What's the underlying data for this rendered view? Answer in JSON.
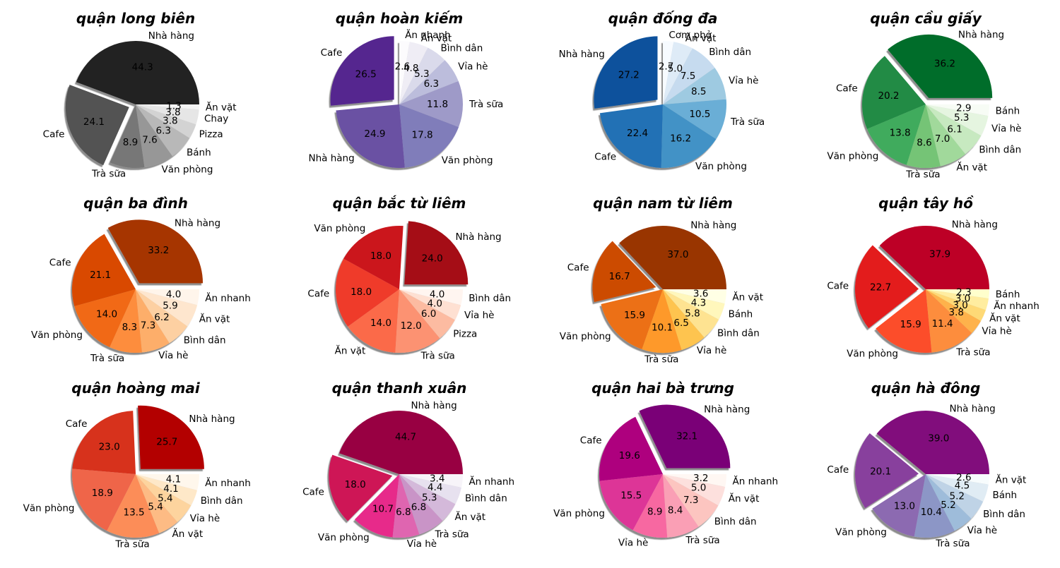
{
  "chart_data": [
    {
      "type": "pie",
      "title": "quận long biên",
      "palette": "greys",
      "startangle": 0,
      "slices": [
        {
          "label": "Nhà hàng",
          "value": 44.3,
          "explode": false
        },
        {
          "label": "Cafe",
          "value": 24.1,
          "explode": true
        },
        {
          "label": "Trà sữa",
          "value": 8.9,
          "explode": false
        },
        {
          "label": "Văn phòng",
          "value": 7.6,
          "explode": false
        },
        {
          "label": "Bánh",
          "value": 6.3,
          "explode": false
        },
        {
          "label": "Pizza",
          "value": 3.8,
          "explode": false
        },
        {
          "label": "Chay",
          "value": 3.8,
          "explode": false
        },
        {
          "label": "Ăn vặt",
          "value": 1.3,
          "explode": false
        }
      ]
    },
    {
      "type": "pie",
      "title": "quận hoàn kiếm",
      "palette": "purples",
      "startangle": 90,
      "slices": [
        {
          "label": "Cafe",
          "value": 26.5,
          "explode": true
        },
        {
          "label": "Nhà hàng",
          "value": 24.9,
          "explode": false
        },
        {
          "label": "Văn phòng",
          "value": 17.8,
          "explode": false
        },
        {
          "label": "Trà sữa",
          "value": 11.8,
          "explode": false
        },
        {
          "label": "Vỉa hè",
          "value": 6.3,
          "explode": false
        },
        {
          "label": "Bình dân",
          "value": 5.3,
          "explode": false
        },
        {
          "label": "Ăn vặt",
          "value": 4.8,
          "explode": false
        },
        {
          "label": "Ăn nhanh",
          "value": 2.6,
          "explode": false
        }
      ]
    },
    {
      "type": "pie",
      "title": "quận đống đa",
      "palette": "blues",
      "startangle": 90,
      "slices": [
        {
          "label": "Nhà hàng",
          "value": 27.2,
          "explode": true
        },
        {
          "label": "Cafe",
          "value": 22.4,
          "explode": false
        },
        {
          "label": "Văn phòng",
          "value": 16.2,
          "explode": false
        },
        {
          "label": "Trà sữa",
          "value": 10.5,
          "explode": false
        },
        {
          "label": "Vỉa hè",
          "value": 8.5,
          "explode": false
        },
        {
          "label": "Bình dân",
          "value": 7.5,
          "explode": false
        },
        {
          "label": "Ăn vặt",
          "value": 5.0,
          "explode": false
        },
        {
          "label": "Cơm phở",
          "value": 2.7,
          "explode": false
        }
      ]
    },
    {
      "type": "pie",
      "title": "quận cầu giấy",
      "palette": "greens",
      "startangle": 0,
      "slices": [
        {
          "label": "Nhà hàng",
          "value": 36.2,
          "explode": true
        },
        {
          "label": "Cafe",
          "value": 20.2,
          "explode": false
        },
        {
          "label": "Văn phòng",
          "value": 13.8,
          "explode": false
        },
        {
          "label": "Trà sữa",
          "value": 8.6,
          "explode": false
        },
        {
          "label": "Ăn vặt",
          "value": 7.0,
          "explode": false
        },
        {
          "label": "Bình dân",
          "value": 6.1,
          "explode": false
        },
        {
          "label": "Vỉa hè",
          "value": 5.3,
          "explode": false
        },
        {
          "label": "Bánh",
          "value": 2.9,
          "explode": false
        }
      ]
    },
    {
      "type": "pie",
      "title": "quận ba đình",
      "palette": "oranges",
      "startangle": 0,
      "slices": [
        {
          "label": "Nhà hàng",
          "value": 33.2,
          "explode": true
        },
        {
          "label": "Cafe",
          "value": 21.1,
          "explode": false
        },
        {
          "label": "Văn phòng",
          "value": 14.0,
          "explode": false
        },
        {
          "label": "Trà sữa",
          "value": 8.3,
          "explode": false
        },
        {
          "label": "Vỉa hè",
          "value": 7.3,
          "explode": false
        },
        {
          "label": "Bình dân",
          "value": 6.2,
          "explode": false
        },
        {
          "label": "Ăn vặt",
          "value": 5.9,
          "explode": false
        },
        {
          "label": "Ăn nhanh",
          "value": 4.0,
          "explode": false
        }
      ]
    },
    {
      "type": "pie",
      "title": "quận bắc từ liêm",
      "palette": "reds",
      "startangle": 0,
      "slices": [
        {
          "label": "Nhà hàng",
          "value": 24.0,
          "explode": true
        },
        {
          "label": "Văn phòng",
          "value": 18.0,
          "explode": false
        },
        {
          "label": "Cafe",
          "value": 18.0,
          "explode": false
        },
        {
          "label": "Ăn vặt",
          "value": 14.0,
          "explode": false
        },
        {
          "label": "Trà sữa",
          "value": 12.0,
          "explode": false
        },
        {
          "label": "Pizza",
          "value": 6.0,
          "explode": false
        },
        {
          "label": "Vỉa hè",
          "value": 4.0,
          "explode": false
        },
        {
          "label": "Bình dân",
          "value": 4.0,
          "explode": false
        }
      ]
    },
    {
      "type": "pie",
      "title": "quận nam từ liêm",
      "palette": "ylorbr",
      "startangle": 0,
      "slices": [
        {
          "label": "Nhà hàng",
          "value": 37.0,
          "explode": false
        },
        {
          "label": "Cafe",
          "value": 16.7,
          "explode": true
        },
        {
          "label": "Văn phòng",
          "value": 15.9,
          "explode": false
        },
        {
          "label": "Trà sữa",
          "value": 10.1,
          "explode": false
        },
        {
          "label": "Vỉa hè",
          "value": 6.5,
          "explode": false
        },
        {
          "label": "Bình dân",
          "value": 5.8,
          "explode": false
        },
        {
          "label": "Bánh",
          "value": 4.3,
          "explode": false
        },
        {
          "label": "Ăn vặt",
          "value": 3.6,
          "explode": false
        }
      ]
    },
    {
      "type": "pie",
      "title": "quận tây hồ",
      "palette": "ylorrd",
      "startangle": 0,
      "slices": [
        {
          "label": "Nhà hàng",
          "value": 37.9,
          "explode": false
        },
        {
          "label": "Cafe",
          "value": 22.7,
          "explode": true
        },
        {
          "label": "Văn phòng",
          "value": 15.9,
          "explode": false
        },
        {
          "label": "Trà sữa",
          "value": 11.4,
          "explode": false
        },
        {
          "label": "Vỉa hè",
          "value": 3.8,
          "explode": false
        },
        {
          "label": "Ăn vặt",
          "value": 3.0,
          "explode": false
        },
        {
          "label": "Ăn nhanh",
          "value": 3.0,
          "explode": false
        },
        {
          "label": "Bánh",
          "value": 2.3,
          "explode": false
        }
      ]
    },
    {
      "type": "pie",
      "title": "quận hoàng mai",
      "palette": "orrd",
      "startangle": 0,
      "slices": [
        {
          "label": "Nhà hàng",
          "value": 25.7,
          "explode": true
        },
        {
          "label": "Cafe",
          "value": 23.0,
          "explode": false
        },
        {
          "label": "Văn phòng",
          "value": 18.9,
          "explode": false
        },
        {
          "label": "Trà sữa",
          "value": 13.5,
          "explode": false
        },
        {
          "label": "Ăn vặt",
          "value": 5.4,
          "explode": false
        },
        {
          "label": "Vỉa hè",
          "value": 5.4,
          "explode": false
        },
        {
          "label": "Bình dân",
          "value": 4.1,
          "explode": false
        },
        {
          "label": "Ăn nhanh",
          "value": 4.1,
          "explode": false
        }
      ]
    },
    {
      "type": "pie",
      "title": "quận thanh xuân",
      "palette": "purd",
      "startangle": 0,
      "slices": [
        {
          "label": "Nhà hàng",
          "value": 44.7,
          "explode": false
        },
        {
          "label": "Cafe",
          "value": 18.0,
          "explode": true
        },
        {
          "label": "Văn phòng",
          "value": 10.7,
          "explode": false
        },
        {
          "label": "Vỉa hè",
          "value": 6.8,
          "explode": false
        },
        {
          "label": "Trà sữa",
          "value": 6.8,
          "explode": false
        },
        {
          "label": "Ăn vặt",
          "value": 5.3,
          "explode": false
        },
        {
          "label": "Bình dân",
          "value": 4.4,
          "explode": false
        },
        {
          "label": "Ăn nhanh",
          "value": 3.4,
          "explode": false
        }
      ]
    },
    {
      "type": "pie",
      "title": "quận hai bà trưng",
      "palette": "rdpu",
      "startangle": 0,
      "slices": [
        {
          "label": "Nhà hàng",
          "value": 32.1,
          "explode": true
        },
        {
          "label": "Cafe",
          "value": 19.6,
          "explode": false
        },
        {
          "label": "Văn phòng",
          "value": 15.5,
          "explode": false
        },
        {
          "label": "Vỉa hè",
          "value": 8.9,
          "explode": false
        },
        {
          "label": "Trà sữa",
          "value": 8.4,
          "explode": false
        },
        {
          "label": "Bình dân",
          "value": 7.3,
          "explode": false
        },
        {
          "label": "Ăn vặt",
          "value": 5.0,
          "explode": false
        },
        {
          "label": "Ăn nhanh",
          "value": 3.2,
          "explode": false
        }
      ]
    },
    {
      "type": "pie",
      "title": "quận hà đông",
      "palette": "bupu",
      "startangle": 0,
      "slices": [
        {
          "label": "Nhà hàng",
          "value": 39.0,
          "explode": false
        },
        {
          "label": "Cafe",
          "value": 20.1,
          "explode": true
        },
        {
          "label": "Văn phòng",
          "value": 13.0,
          "explode": false
        },
        {
          "label": "Trà sữa",
          "value": 10.4,
          "explode": false
        },
        {
          "label": "Vỉa hè",
          "value": 5.2,
          "explode": false
        },
        {
          "label": "Bình dân",
          "value": 5.2,
          "explode": false
        },
        {
          "label": "Bánh",
          "value": 4.5,
          "explode": false
        },
        {
          "label": "Ăn vặt",
          "value": 2.6,
          "explode": false
        }
      ]
    }
  ],
  "palettes": {
    "greys": [
      "#232323",
      "#525252",
      "#777777",
      "#979797",
      "#b8b8b8",
      "#d3d3d3",
      "#e6e6e6",
      "#f5f5f5"
    ],
    "purples": [
      "#54278f",
      "#6a51a3",
      "#807dba",
      "#9e9ac8",
      "#bcbddc",
      "#dadaeb",
      "#efedf5",
      "#fcfbfd"
    ],
    "blues": [
      "#08519c",
      "#2171b5",
      "#4292c6",
      "#6baed6",
      "#9ecae1",
      "#c6dbef",
      "#deebf7",
      "#f7fbff"
    ],
    "greens": [
      "#006d2c",
      "#238b45",
      "#41ab5d",
      "#74c476",
      "#a1d99b",
      "#c7e9c0",
      "#e5f5e0",
      "#f7fcf5"
    ],
    "oranges": [
      "#a63603",
      "#d94801",
      "#f16913",
      "#fd8d3c",
      "#fdae6b",
      "#fdd0a2",
      "#fee6ce",
      "#fff5eb"
    ],
    "reds": [
      "#a50f15",
      "#cb181d",
      "#ef3b2c",
      "#fb6a4a",
      "#fc9272",
      "#fcbba1",
      "#fee0d2",
      "#fff5f0"
    ],
    "ylorbr": [
      "#993404",
      "#cc4c02",
      "#ec7014",
      "#fe9929",
      "#fec44f",
      "#fee391",
      "#fff7bc",
      "#ffffe5"
    ],
    "ylorrd": [
      "#bd0026",
      "#e31a1c",
      "#fc4e2a",
      "#fd8d3c",
      "#feb24c",
      "#fed976",
      "#ffeda0",
      "#ffffcc"
    ],
    "orrd": [
      "#b30000",
      "#d7301f",
      "#ef6548",
      "#fc8d59",
      "#fdbb84",
      "#fdd49e",
      "#fee8c8",
      "#fff7ec"
    ],
    "purd": [
      "#980043",
      "#ce1256",
      "#e7298a",
      "#df65b0",
      "#c994c7",
      "#d4b9da",
      "#e7e1ef",
      "#f7f4f9"
    ],
    "rdpu": [
      "#7a0177",
      "#ae017e",
      "#dd3497",
      "#f768a1",
      "#fa9fb5",
      "#fcc5c0",
      "#fde0dd",
      "#fff7f3"
    ],
    "bupu": [
      "#810f7c",
      "#88419d",
      "#8c6bb1",
      "#8c96c6",
      "#9ebcda",
      "#bfd3e6",
      "#e0ecf4",
      "#f7fcfd"
    ]
  }
}
